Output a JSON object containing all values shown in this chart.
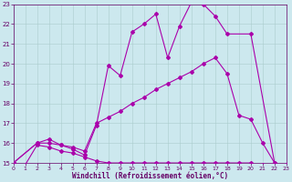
{
  "bg_color": "#cce8ee",
  "line_color": "#aa00aa",
  "grid_color": "#aacccc",
  "xlabel": "Windchill (Refroidissement éolien,°C)",
  "xlabel_color": "#660066",
  "tick_color": "#660066",
  "xlim": [
    0,
    23
  ],
  "ylim": [
    15,
    23
  ],
  "yticks": [
    15,
    16,
    17,
    18,
    19,
    20,
    21,
    22,
    23
  ],
  "xticks": [
    0,
    1,
    2,
    3,
    4,
    5,
    6,
    7,
    8,
    9,
    10,
    11,
    12,
    13,
    14,
    15,
    16,
    17,
    18,
    19,
    20,
    21,
    22,
    23
  ],
  "line1_x": [
    0,
    1,
    2,
    3,
    4,
    5,
    6,
    7,
    8,
    9,
    10,
    11,
    12,
    13,
    14,
    15,
    16,
    17,
    18,
    19,
    20,
    21,
    22,
    23
  ],
  "line1_y": [
    15.0,
    14.9,
    15.9,
    15.8,
    15.6,
    15.5,
    15.3,
    15.1,
    15.0,
    15.0,
    15.0,
    15.0,
    15.0,
    15.0,
    15.0,
    15.0,
    15.0,
    15.0,
    15.0,
    15.0,
    15.0,
    14.9,
    14.9,
    14.9
  ],
  "line2_x": [
    0,
    2,
    3,
    4,
    5,
    6,
    7,
    8,
    9,
    10,
    11,
    12,
    13,
    14,
    15,
    16,
    17,
    18,
    19,
    20,
    21,
    22,
    23
  ],
  "line2_y": [
    15.0,
    16.0,
    16.0,
    15.9,
    15.8,
    15.6,
    17.0,
    17.3,
    17.6,
    18.0,
    18.3,
    18.7,
    19.0,
    19.3,
    19.6,
    20.0,
    20.3,
    19.5,
    17.4,
    17.2,
    16.0,
    15.0,
    14.9
  ],
  "line3_x": [
    0,
    2,
    3,
    4,
    5,
    6,
    7,
    8,
    9,
    10,
    11,
    12,
    13,
    14,
    15,
    16,
    17,
    18,
    20,
    22,
    23
  ],
  "line3_y": [
    15.0,
    16.0,
    16.2,
    15.9,
    15.7,
    15.4,
    16.9,
    19.9,
    19.4,
    21.6,
    22.0,
    22.5,
    20.3,
    21.9,
    23.1,
    23.0,
    22.4,
    21.5,
    21.5,
    15.0,
    14.9
  ],
  "marker": "D",
  "markersize": 2.0,
  "linewidth": 0.8,
  "figsize": [
    3.2,
    2.0
  ],
  "dpi": 100
}
